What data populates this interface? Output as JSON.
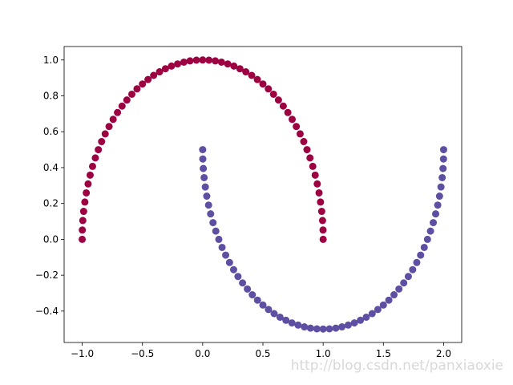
{
  "chart_data": {
    "type": "scatter",
    "xlim": [
      -1.15,
      2.15
    ],
    "ylim": [
      -0.575,
      1.075
    ],
    "xticks": [
      {
        "value": -1,
        "label": "−1.0"
      },
      {
        "value": -0.5,
        "label": "−0.5"
      },
      {
        "value": 0,
        "label": "0.0"
      },
      {
        "value": 0.5,
        "label": "0.5"
      },
      {
        "value": 1,
        "label": "1.0"
      },
      {
        "value": 1.5,
        "label": "1.5"
      },
      {
        "value": 2,
        "label": "2.0"
      }
    ],
    "yticks": [
      {
        "value": -0.4,
        "label": "−0.4"
      },
      {
        "value": -0.2,
        "label": "−0.2"
      },
      {
        "value": 0,
        "label": "0.0"
      },
      {
        "value": 0.2,
        "label": "0.2"
      },
      {
        "value": 0.4,
        "label": "0.4"
      },
      {
        "value": 0.6,
        "label": "0.6"
      },
      {
        "value": 0.8,
        "label": "0.8"
      },
      {
        "value": 1,
        "label": "1.0"
      }
    ],
    "grid": false,
    "watermark": "http://blog.csdn.net/panxiaoxie",
    "series": [
      {
        "color": "#9e0142",
        "x": [
          1,
          0.999,
          0.995,
          0.988,
          0.978,
          0.966,
          0.951,
          0.934,
          0.914,
          0.891,
          0.866,
          0.839,
          0.809,
          0.777,
          0.743,
          0.707,
          0.669,
          0.629,
          0.588,
          0.545,
          0.5,
          0.454,
          0.407,
          0.358,
          0.309,
          0.259,
          0.208,
          0.156,
          0.105,
          0.052,
          0,
          -0.052,
          -0.105,
          -0.156,
          -0.208,
          -0.259,
          -0.309,
          -0.358,
          -0.407,
          -0.454,
          -0.5,
          -0.545,
          -0.588,
          -0.629,
          -0.669,
          -0.707,
          -0.743,
          -0.777,
          -0.809,
          -0.839,
          -0.866,
          -0.891,
          -0.914,
          -0.934,
          -0.951,
          -0.966,
          -0.978,
          -0.988,
          -0.995,
          -0.999,
          -1
        ],
        "values": [
          0,
          0.052,
          0.105,
          0.156,
          0.208,
          0.259,
          0.309,
          0.358,
          0.407,
          0.454,
          0.5,
          0.545,
          0.588,
          0.629,
          0.669,
          0.707,
          0.743,
          0.777,
          0.809,
          0.839,
          0.866,
          0.891,
          0.914,
          0.934,
          0.951,
          0.966,
          0.978,
          0.988,
          0.995,
          0.999,
          1,
          0.999,
          0.995,
          0.988,
          0.978,
          0.966,
          0.951,
          0.934,
          0.914,
          0.891,
          0.866,
          0.839,
          0.809,
          0.777,
          0.743,
          0.707,
          0.669,
          0.629,
          0.588,
          0.545,
          0.5,
          0.454,
          0.407,
          0.358,
          0.309,
          0.259,
          0.208,
          0.156,
          0.105,
          0.052,
          0
        ]
      },
      {
        "color": "#5e4fa2",
        "x": [
          0,
          0.001,
          0.005,
          0.012,
          0.022,
          0.034,
          0.049,
          0.066,
          0.086,
          0.109,
          0.134,
          0.161,
          0.191,
          0.223,
          0.257,
          0.293,
          0.331,
          0.371,
          0.412,
          0.455,
          0.5,
          0.546,
          0.593,
          0.642,
          0.691,
          0.741,
          0.792,
          0.844,
          0.895,
          0.948,
          1,
          1.052,
          1.105,
          1.156,
          1.208,
          1.259,
          1.309,
          1.358,
          1.407,
          1.454,
          1.5,
          1.545,
          1.588,
          1.629,
          1.669,
          1.707,
          1.743,
          1.777,
          1.809,
          1.839,
          1.866,
          1.891,
          1.914,
          1.934,
          1.951,
          1.966,
          1.978,
          1.988,
          1.995,
          1.999,
          2
        ],
        "values": [
          0.5,
          0.448,
          0.395,
          0.344,
          0.292,
          0.241,
          0.191,
          0.142,
          0.093,
          0.046,
          0,
          -0.045,
          -0.088,
          -0.129,
          -0.169,
          -0.207,
          -0.243,
          -0.277,
          -0.309,
          -0.339,
          -0.366,
          -0.391,
          -0.414,
          -0.434,
          -0.451,
          -0.466,
          -0.478,
          -0.488,
          -0.495,
          -0.499,
          -0.5,
          -0.499,
          -0.495,
          -0.488,
          -0.478,
          -0.466,
          -0.451,
          -0.434,
          -0.414,
          -0.391,
          -0.366,
          -0.339,
          -0.309,
          -0.277,
          -0.243,
          -0.207,
          -0.169,
          -0.129,
          -0.088,
          -0.045,
          0,
          0.046,
          0.093,
          0.142,
          0.191,
          0.241,
          0.292,
          0.344,
          0.395,
          0.448,
          0.5
        ]
      }
    ]
  }
}
